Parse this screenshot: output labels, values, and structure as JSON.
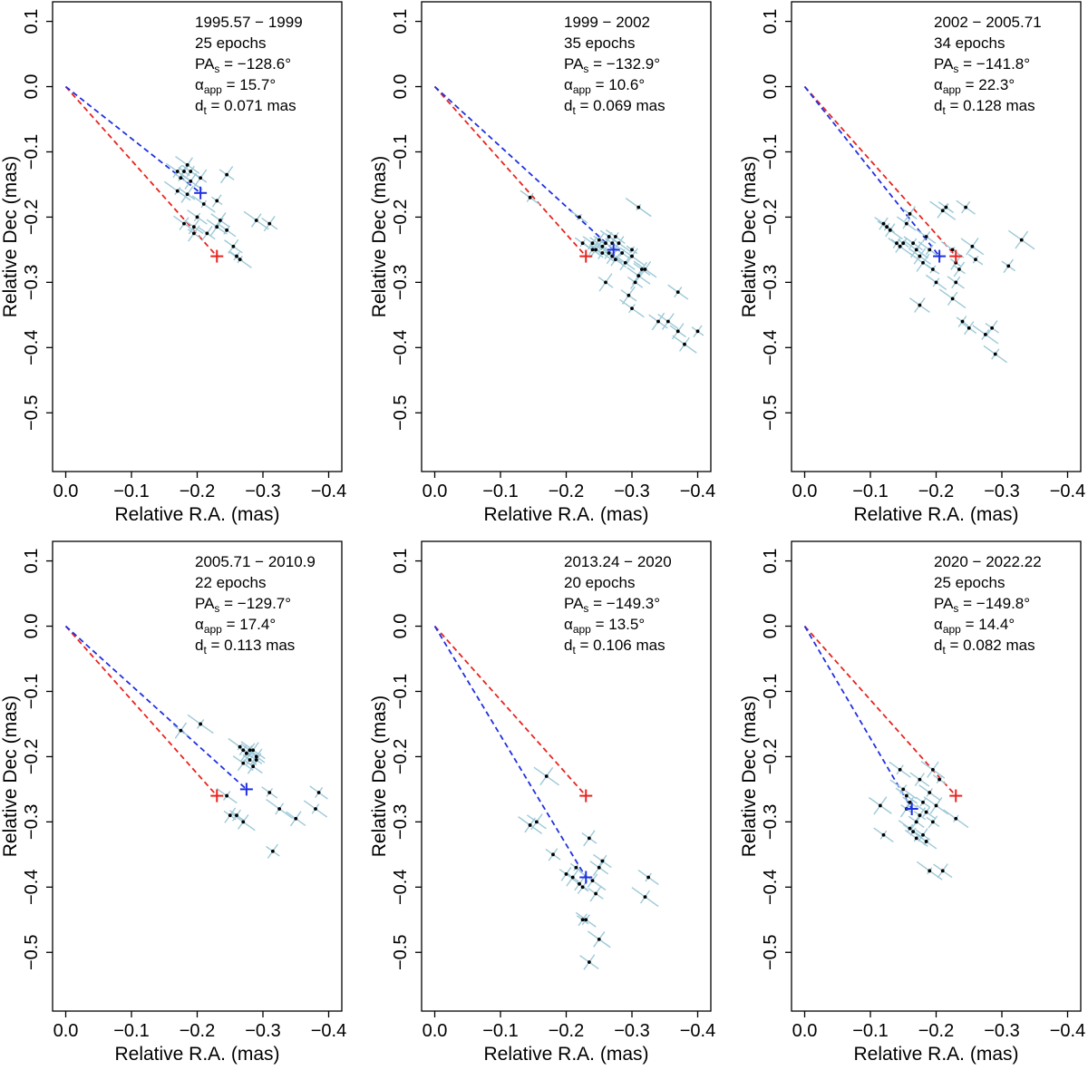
{
  "chart_data": [
    {
      "type": "scatter",
      "xlabel": "Relative R.A. (mas)",
      "ylabel": "Relative Dec (mas)",
      "xlim": [
        0.02,
        -0.42
      ],
      "ylim": [
        -0.59,
        0.13
      ],
      "xticks": [
        "0.0",
        "−0.1",
        "−0.2",
        "−0.3",
        "−0.4"
      ],
      "yticks": [
        "0.1",
        "0.0",
        "−0.1",
        "−0.2",
        "−0.3",
        "−0.4",
        "−0.5"
      ],
      "annotation": {
        "period": "1995.57 − 1999",
        "epochs": "25 epochs",
        "pa_label": "PA",
        "pa_sub": "s",
        "pa_value": " = −128.6°",
        "alpha_label": "α",
        "alpha_sub": "app",
        "alpha_value": " = 15.7°",
        "d_label": "d",
        "d_sub": "t",
        "d_value": " = 0.071 mas"
      },
      "red_marker": [
        -0.23,
        -0.26
      ],
      "blue_marker": [
        -0.205,
        -0.163
      ],
      "points": [
        [
          -0.17,
          -0.13
        ],
        [
          -0.18,
          -0.13
        ],
        [
          -0.19,
          -0.13
        ],
        [
          -0.185,
          -0.12
        ],
        [
          -0.175,
          -0.14
        ],
        [
          -0.19,
          -0.145
        ],
        [
          -0.205,
          -0.14
        ],
        [
          -0.17,
          -0.16
        ],
        [
          -0.185,
          -0.165
        ],
        [
          -0.21,
          -0.18
        ],
        [
          -0.23,
          -0.175
        ],
        [
          -0.245,
          -0.135
        ],
        [
          -0.18,
          -0.21
        ],
        [
          -0.195,
          -0.215
        ],
        [
          -0.195,
          -0.225
        ],
        [
          -0.215,
          -0.225
        ],
        [
          -0.23,
          -0.215
        ],
        [
          -0.245,
          -0.22
        ],
        [
          -0.255,
          -0.245
        ],
        [
          -0.26,
          -0.26
        ],
        [
          -0.265,
          -0.265
        ],
        [
          -0.29,
          -0.205
        ],
        [
          -0.31,
          -0.21
        ],
        [
          -0.235,
          -0.205
        ],
        [
          -0.2,
          -0.2
        ]
      ]
    },
    {
      "type": "scatter",
      "xlabel": "Relative R.A. (mas)",
      "ylabel": "Relative Dec (mas)",
      "xlim": [
        0.02,
        -0.42
      ],
      "ylim": [
        -0.59,
        0.13
      ],
      "xticks": [
        "0.0",
        "−0.1",
        "−0.2",
        "−0.3",
        "−0.4"
      ],
      "yticks": [
        "0.1",
        "0.0",
        "−0.1",
        "−0.2",
        "−0.3",
        "−0.4",
        "−0.5"
      ],
      "annotation": {
        "period": "1999 − 2002",
        "epochs": "35 epochs",
        "pa_label": "PA",
        "pa_sub": "s",
        "pa_value": " = −132.9°",
        "alpha_label": "α",
        "alpha_sub": "app",
        "alpha_value": " = 10.6°",
        "d_label": "d",
        "d_sub": "t",
        "d_value": " = 0.069 mas"
      },
      "red_marker": [
        -0.23,
        -0.26
      ],
      "blue_marker": [
        -0.272,
        -0.25
      ],
      "points": [
        [
          -0.145,
          -0.17
        ],
        [
          -0.22,
          -0.2
        ],
        [
          -0.225,
          -0.24
        ],
        [
          -0.24,
          -0.24
        ],
        [
          -0.245,
          -0.25
        ],
        [
          -0.25,
          -0.235
        ],
        [
          -0.255,
          -0.245
        ],
        [
          -0.26,
          -0.24
        ],
        [
          -0.265,
          -0.23
        ],
        [
          -0.265,
          -0.255
        ],
        [
          -0.27,
          -0.24
        ],
        [
          -0.275,
          -0.23
        ],
        [
          -0.28,
          -0.24
        ],
        [
          -0.255,
          -0.255
        ],
        [
          -0.26,
          -0.3
        ],
        [
          -0.29,
          -0.27
        ],
        [
          -0.3,
          -0.26
        ],
        [
          -0.295,
          -0.32
        ],
        [
          -0.3,
          -0.34
        ],
        [
          -0.305,
          -0.3
        ],
        [
          -0.31,
          -0.29
        ],
        [
          -0.315,
          -0.28
        ],
        [
          -0.32,
          -0.28
        ],
        [
          -0.31,
          -0.185
        ],
        [
          -0.34,
          -0.36
        ],
        [
          -0.355,
          -0.36
        ],
        [
          -0.37,
          -0.375
        ],
        [
          -0.38,
          -0.395
        ],
        [
          -0.37,
          -0.315
        ],
        [
          -0.4,
          -0.375
        ],
        [
          -0.24,
          -0.25
        ],
        [
          -0.27,
          -0.26
        ],
        [
          -0.285,
          -0.255
        ],
        [
          -0.275,
          -0.265
        ],
        [
          -0.3,
          -0.25
        ]
      ]
    },
    {
      "type": "scatter",
      "xlabel": "Relative R.A. (mas)",
      "ylabel": "Relative Dec (mas)",
      "xlim": [
        0.02,
        -0.42
      ],
      "ylim": [
        -0.59,
        0.13
      ],
      "xticks": [
        "0.0",
        "−0.1",
        "−0.2",
        "−0.3",
        "−0.4"
      ],
      "yticks": [
        "0.1",
        "0.0",
        "−0.1",
        "−0.2",
        "−0.3",
        "−0.4",
        "−0.5"
      ],
      "annotation": {
        "period": "2002 − 2005.71",
        "epochs": "34 epochs",
        "pa_label": "PA",
        "pa_sub": "s",
        "pa_value": " = −141.8°",
        "alpha_label": "α",
        "alpha_sub": "app",
        "alpha_value": " = 22.3°",
        "d_label": "d",
        "d_sub": "t",
        "d_value": " = 0.128 mas"
      },
      "red_marker": [
        -0.23,
        -0.26
      ],
      "blue_marker": [
        -0.205,
        -0.26
      ],
      "points": [
        [
          -0.12,
          -0.21
        ],
        [
          -0.125,
          -0.215
        ],
        [
          -0.13,
          -0.22
        ],
        [
          -0.14,
          -0.24
        ],
        [
          -0.145,
          -0.245
        ],
        [
          -0.15,
          -0.24
        ],
        [
          -0.155,
          -0.21
        ],
        [
          -0.16,
          -0.195
        ],
        [
          -0.165,
          -0.24
        ],
        [
          -0.17,
          -0.25
        ],
        [
          -0.175,
          -0.26
        ],
        [
          -0.18,
          -0.27
        ],
        [
          -0.185,
          -0.23
        ],
        [
          -0.19,
          -0.25
        ],
        [
          -0.195,
          -0.28
        ],
        [
          -0.2,
          -0.3
        ],
        [
          -0.21,
          -0.19
        ],
        [
          -0.215,
          -0.185
        ],
        [
          -0.225,
          -0.25
        ],
        [
          -0.23,
          -0.27
        ],
        [
          -0.235,
          -0.28
        ],
        [
          -0.23,
          -0.3
        ],
        [
          -0.225,
          -0.325
        ],
        [
          -0.24,
          -0.36
        ],
        [
          -0.25,
          -0.37
        ],
        [
          -0.26,
          -0.265
        ],
        [
          -0.255,
          -0.245
        ],
        [
          -0.245,
          -0.185
        ],
        [
          -0.275,
          -0.38
        ],
        [
          -0.285,
          -0.37
        ],
        [
          -0.29,
          -0.41
        ],
        [
          -0.33,
          -0.235
        ],
        [
          -0.31,
          -0.275
        ],
        [
          -0.175,
          -0.335
        ]
      ]
    },
    {
      "type": "scatter",
      "xlabel": "Relative R.A. (mas)",
      "ylabel": "Relative Dec (mas)",
      "xlim": [
        0.02,
        -0.42
      ],
      "ylim": [
        -0.59,
        0.13
      ],
      "xticks": [
        "0.0",
        "−0.1",
        "−0.2",
        "−0.3",
        "−0.4"
      ],
      "yticks": [
        "0.1",
        "0.0",
        "−0.1",
        "−0.2",
        "−0.3",
        "−0.4",
        "−0.5"
      ],
      "annotation": {
        "period": "2005.71 − 2010.9",
        "epochs": "22 epochs",
        "pa_label": "PA",
        "pa_sub": "s",
        "pa_value": " = −129.7°",
        "alpha_label": "α",
        "alpha_sub": "app",
        "alpha_value": " = 17.4°",
        "d_label": "d",
        "d_sub": "t",
        "d_value": " = 0.113 mas"
      },
      "red_marker": [
        -0.23,
        -0.26
      ],
      "blue_marker": [
        -0.275,
        -0.25
      ],
      "points": [
        [
          -0.175,
          -0.16
        ],
        [
          -0.205,
          -0.15
        ],
        [
          -0.245,
          -0.26
        ],
        [
          -0.25,
          -0.29
        ],
        [
          -0.26,
          -0.29
        ],
        [
          -0.27,
          -0.3
        ],
        [
          -0.265,
          -0.185
        ],
        [
          -0.27,
          -0.19
        ],
        [
          -0.275,
          -0.195
        ],
        [
          -0.28,
          -0.19
        ],
        [
          -0.285,
          -0.19
        ],
        [
          -0.28,
          -0.205
        ],
        [
          -0.29,
          -0.2
        ],
        [
          -0.27,
          -0.21
        ],
        [
          -0.285,
          -0.215
        ],
        [
          -0.31,
          -0.255
        ],
        [
          -0.325,
          -0.28
        ],
        [
          -0.35,
          -0.295
        ],
        [
          -0.315,
          -0.345
        ],
        [
          -0.38,
          -0.28
        ],
        [
          -0.385,
          -0.255
        ],
        [
          -0.29,
          -0.205
        ]
      ]
    },
    {
      "type": "scatter",
      "xlabel": "Relative R.A. (mas)",
      "ylabel": "Relative Dec (mas)",
      "xlim": [
        0.02,
        -0.42
      ],
      "ylim": [
        -0.59,
        0.13
      ],
      "xticks": [
        "0.0",
        "−0.1",
        "−0.2",
        "−0.3",
        "−0.4"
      ],
      "yticks": [
        "0.1",
        "0.0",
        "−0.1",
        "−0.2",
        "−0.3",
        "−0.4",
        "−0.5"
      ],
      "annotation": {
        "period": "2013.24 − 2020",
        "epochs": "20 epochs",
        "pa_label": "PA",
        "pa_sub": "s",
        "pa_value": " = −149.3°",
        "alpha_label": "α",
        "alpha_sub": "app",
        "alpha_value": " = 13.5°",
        "d_label": "d",
        "d_sub": "t",
        "d_value": " = 0.106 mas"
      },
      "red_marker": [
        -0.23,
        -0.26
      ],
      "blue_marker": [
        -0.23,
        -0.385
      ],
      "points": [
        [
          -0.145,
          -0.305
        ],
        [
          -0.155,
          -0.3
        ],
        [
          -0.17,
          -0.23
        ],
        [
          -0.18,
          -0.35
        ],
        [
          -0.2,
          -0.38
        ],
        [
          -0.21,
          -0.385
        ],
        [
          -0.22,
          -0.395
        ],
        [
          -0.225,
          -0.45
        ],
        [
          -0.23,
          -0.45
        ],
        [
          -0.235,
          -0.325
        ],
        [
          -0.24,
          -0.39
        ],
        [
          -0.245,
          -0.41
        ],
        [
          -0.25,
          -0.37
        ],
        [
          -0.255,
          -0.36
        ],
        [
          -0.25,
          -0.48
        ],
        [
          -0.235,
          -0.515
        ],
        [
          -0.32,
          -0.415
        ],
        [
          -0.325,
          -0.385
        ],
        [
          -0.225,
          -0.4
        ],
        [
          -0.215,
          -0.37
        ]
      ]
    },
    {
      "type": "scatter",
      "xlabel": "Relative R.A. (mas)",
      "ylabel": "Relative Dec (mas)",
      "xlim": [
        0.02,
        -0.42
      ],
      "ylim": [
        -0.59,
        0.13
      ],
      "xticks": [
        "0.0",
        "−0.1",
        "−0.2",
        "−0.3",
        "−0.4"
      ],
      "yticks": [
        "0.1",
        "0.0",
        "−0.1",
        "−0.2",
        "−0.3",
        "−0.4",
        "−0.5"
      ],
      "annotation": {
        "period": "2020 − 2022.22",
        "epochs": "25 epochs",
        "pa_label": "PA",
        "pa_sub": "s",
        "pa_value": " = −149.8°",
        "alpha_label": "α",
        "alpha_sub": "app",
        "alpha_value": " = 14.4°",
        "d_label": "d",
        "d_sub": "t",
        "d_value": " = 0.082 mas"
      },
      "red_marker": [
        -0.23,
        -0.26
      ],
      "blue_marker": [
        -0.163,
        -0.28
      ],
      "points": [
        [
          -0.115,
          -0.275
        ],
        [
          -0.12,
          -0.32
        ],
        [
          -0.145,
          -0.22
        ],
        [
          -0.15,
          -0.25
        ],
        [
          -0.155,
          -0.26
        ],
        [
          -0.16,
          -0.27
        ],
        [
          -0.16,
          -0.31
        ],
        [
          -0.165,
          -0.315
        ],
        [
          -0.17,
          -0.3
        ],
        [
          -0.17,
          -0.325
        ],
        [
          -0.175,
          -0.235
        ],
        [
          -0.18,
          -0.27
        ],
        [
          -0.18,
          -0.32
        ],
        [
          -0.185,
          -0.285
        ],
        [
          -0.185,
          -0.33
        ],
        [
          -0.19,
          -0.255
        ],
        [
          -0.195,
          -0.22
        ],
        [
          -0.195,
          -0.3
        ],
        [
          -0.2,
          -0.275
        ],
        [
          -0.205,
          -0.235
        ],
        [
          -0.19,
          -0.375
        ],
        [
          -0.21,
          -0.375
        ],
        [
          -0.23,
          -0.295
        ],
        [
          -0.155,
          -0.28
        ],
        [
          -0.175,
          -0.29
        ]
      ]
    }
  ]
}
